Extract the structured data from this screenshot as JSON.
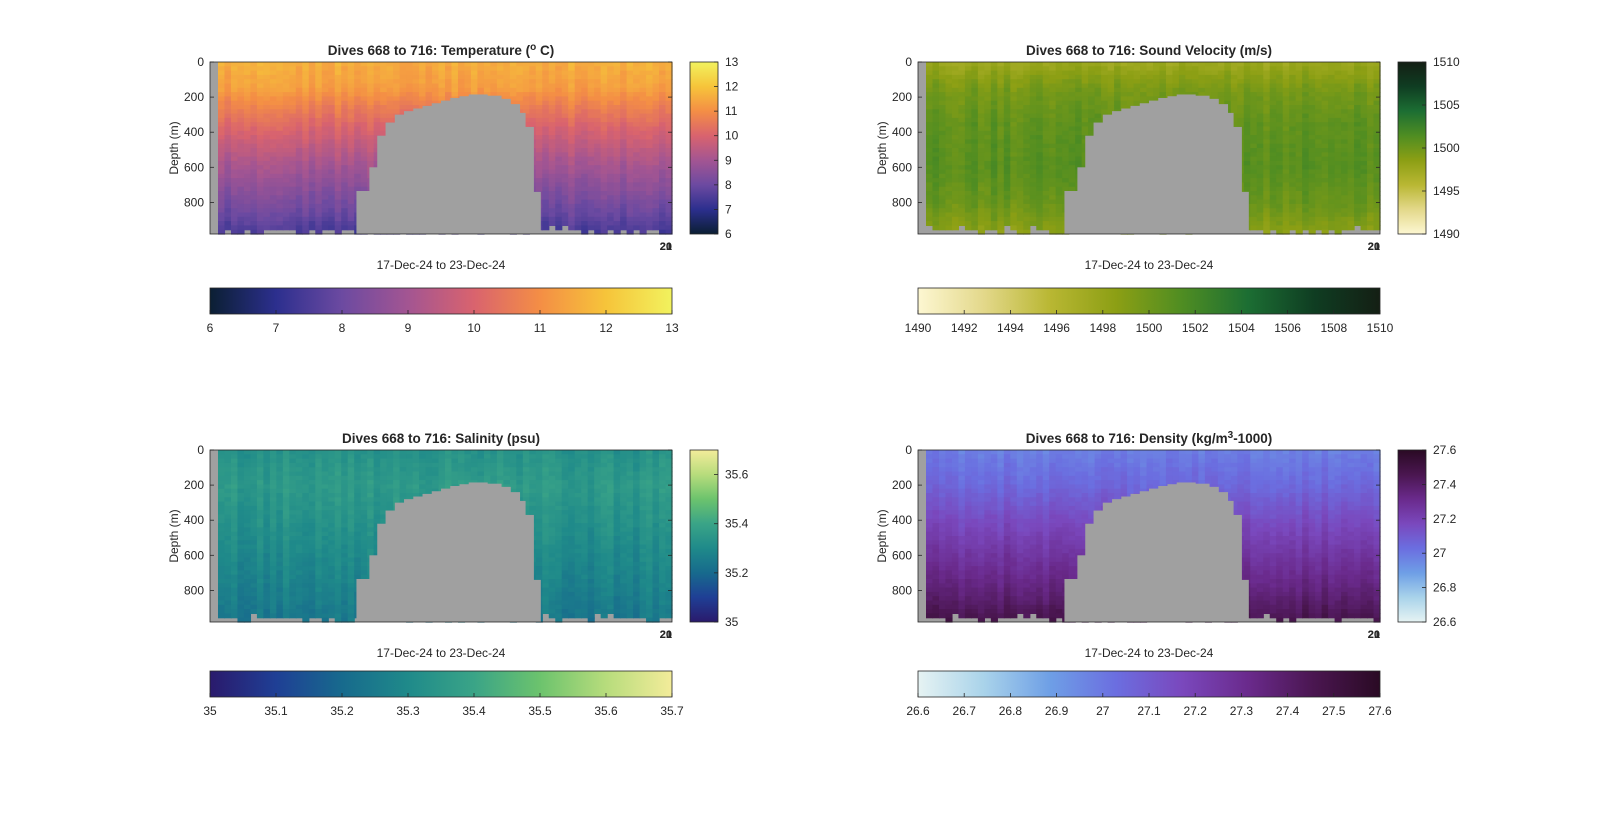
{
  "figure": {
    "background": "#ffffff",
    "mask_color": "#a0a0a0"
  },
  "chart_data": [
    {
      "type": "heatmap",
      "title": "Dives 668 to 716: Temperature (",
      "title_sup": "o",
      "title_suffix": " C)",
      "xlabel": "17-Dec-24 to 23-Dec-24",
      "x_tick_labels": [
        "20",
        "21"
      ],
      "ylabel": "Depth (m)",
      "y_ticks": [
        0,
        200,
        400,
        600,
        800
      ],
      "ylim": [
        0,
        980
      ],
      "y_reversed": true,
      "colormap": [
        "#0b1f33",
        "#2c2f8e",
        "#6c4aa1",
        "#a35592",
        "#d9636e",
        "#f48e45",
        "#f6c43a",
        "#f2f25e"
      ],
      "clim": [
        6,
        13
      ],
      "side_colorbar_ticks": [
        6,
        7,
        8,
        9,
        10,
        11,
        12,
        13
      ],
      "bottom_colorbar_ticks": [
        6,
        7,
        8,
        9,
        10,
        11,
        12,
        13
      ],
      "profile": [
        {
          "depth": 0,
          "value": 11.6
        },
        {
          "depth": 150,
          "value": 11.3
        },
        {
          "depth": 250,
          "value": 10.7
        },
        {
          "depth": 400,
          "value": 9.9
        },
        {
          "depth": 550,
          "value": 9.2
        },
        {
          "depth": 700,
          "value": 8.6
        },
        {
          "depth": 850,
          "value": 8.0
        },
        {
          "depth": 980,
          "value": 7.4
        }
      ],
      "variability": 0.35,
      "surface_anomaly": 0
    },
    {
      "type": "heatmap",
      "title": "Dives 668 to 716: Sound Velocity (m/s)",
      "title_sup": "",
      "title_suffix": "",
      "xlabel": "17-Dec-24 to 23-Dec-24",
      "x_tick_labels": [
        "20",
        "21"
      ],
      "ylabel": "Depth (m)",
      "y_ticks": [
        0,
        200,
        400,
        600,
        800
      ],
      "ylim": [
        0,
        980
      ],
      "y_reversed": true,
      "colormap": [
        "#fdf7d2",
        "#e3d88a",
        "#b9b733",
        "#8c9f14",
        "#4f8d22",
        "#1c6e33",
        "#0f3d22",
        "#141f14"
      ],
      "clim": [
        1490,
        1510
      ],
      "side_colorbar_ticks": [
        1490,
        1495,
        1500,
        1505,
        1510
      ],
      "bottom_colorbar_ticks": [
        1490,
        1492,
        1494,
        1496,
        1498,
        1500,
        1502,
        1504,
        1506,
        1508,
        1510
      ],
      "profile": [
        {
          "depth": 0,
          "value": 1497.5
        },
        {
          "depth": 150,
          "value": 1499.5
        },
        {
          "depth": 350,
          "value": 1500.6
        },
        {
          "depth": 600,
          "value": 1501.0
        },
        {
          "depth": 800,
          "value": 1500.2
        },
        {
          "depth": 980,
          "value": 1498.6
        }
      ],
      "variability": 1.1,
      "surface_anomaly": 0
    },
    {
      "type": "heatmap",
      "title": "Dives 668 to 716: Salinity (psu)",
      "title_sup": "",
      "title_suffix": "",
      "xlabel": "17-Dec-24 to 23-Dec-24",
      "x_tick_labels": [
        "20",
        "21"
      ],
      "ylabel": "Depth (m)",
      "y_ticks": [
        0,
        200,
        400,
        600,
        800
      ],
      "ylim": [
        0,
        980
      ],
      "y_reversed": true,
      "colormap": [
        "#2a1a6c",
        "#1f3f95",
        "#176a8d",
        "#1f8a8a",
        "#3aa487",
        "#6cc36d",
        "#b7dc7c",
        "#f3ec9a"
      ],
      "clim": [
        35,
        35.7
      ],
      "side_colorbar_ticks": [
        35,
        35.2,
        35.4,
        35.6
      ],
      "bottom_colorbar_ticks": [
        35,
        35.1,
        35.2,
        35.3,
        35.4,
        35.5,
        35.6,
        35.7
      ],
      "profile": [
        {
          "depth": 0,
          "value": 35.33
        },
        {
          "depth": 200,
          "value": 35.36
        },
        {
          "depth": 400,
          "value": 35.33
        },
        {
          "depth": 600,
          "value": 35.3
        },
        {
          "depth": 800,
          "value": 35.27
        },
        {
          "depth": 980,
          "value": 35.24
        }
      ],
      "variability": 0.045,
      "surface_anomaly": 0
    },
    {
      "type": "heatmap",
      "title": "Dives 668 to 716: Density (kg/m",
      "title_sup": "3",
      "title_suffix": "-1000)",
      "xlabel": "17-Dec-24 to 23-Dec-24",
      "x_tick_labels": [
        "20",
        "21"
      ],
      "ylabel": "Depth (m)",
      "y_ticks": [
        0,
        200,
        400,
        600,
        800
      ],
      "ylim": [
        0,
        980
      ],
      "y_reversed": true,
      "colormap": [
        "#e6f3f3",
        "#a9d3ea",
        "#6e9fe6",
        "#6b6ee0",
        "#7a48bd",
        "#6a2a8c",
        "#4a1650",
        "#2a0a24"
      ],
      "clim": [
        26.6,
        27.6
      ],
      "side_colorbar_ticks": [
        26.6,
        26.8,
        27,
        27.2,
        27.4,
        27.6
      ],
      "bottom_colorbar_ticks": [
        26.6,
        26.7,
        26.8,
        26.9,
        27,
        27.1,
        27.2,
        27.3,
        27.4,
        27.5,
        27.6
      ],
      "profile": [
        {
          "depth": 0,
          "value": 26.98
        },
        {
          "depth": 200,
          "value": 27.05
        },
        {
          "depth": 400,
          "value": 27.16
        },
        {
          "depth": 600,
          "value": 27.26
        },
        {
          "depth": 800,
          "value": 27.36
        },
        {
          "depth": 980,
          "value": 27.48
        }
      ],
      "variability": 0.05,
      "surface_anomaly": 0
    }
  ]
}
